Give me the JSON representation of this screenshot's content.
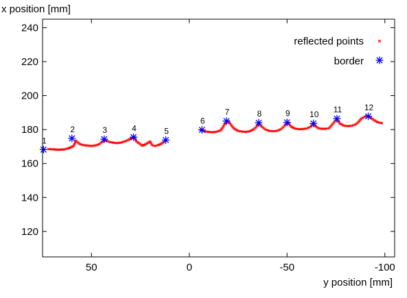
{
  "chart_data": {
    "type": "scatter",
    "xlabel": "y position [mm]",
    "ylabel": "x position [mm]",
    "xlim": [
      75,
      -105
    ],
    "ylim": [
      105,
      245
    ],
    "x_ticks": [
      50,
      0,
      -50,
      -100
    ],
    "x_tick_labels": [
      "50",
      "0",
      "-50",
      "-100"
    ],
    "y_ticks": [
      120,
      140,
      160,
      180,
      200,
      220,
      240
    ],
    "y_tick_labels": [
      "120",
      "140",
      "160",
      "180",
      "200",
      "220",
      "240"
    ],
    "grid": false,
    "legend_position": "top-right",
    "series": [
      {
        "name": "reflected points",
        "marker": "x",
        "color": "#ff0000",
        "segments": [
          [
            [
              72,
              168.5
            ],
            [
              70,
              168.4
            ],
            [
              67,
              168.1
            ],
            [
              64,
              168.3
            ],
            [
              62,
              168.9
            ],
            [
              60.5,
              169.5
            ],
            [
              59,
              170.5
            ],
            [
              58,
              173.5
            ],
            [
              56,
              171.5
            ],
            [
              54,
              170.8
            ],
            [
              52,
              170.6
            ],
            [
              50,
              170.3
            ],
            [
              48,
              170.6
            ],
            [
              46,
              171.4
            ],
            [
              44.5,
              172.8
            ],
            [
              43,
              173.8
            ],
            [
              41,
              172.8
            ],
            [
              39,
              172.3
            ],
            [
              37,
              172.0
            ],
            [
              35,
              172.3
            ],
            [
              33,
              173.0
            ],
            [
              31,
              174.0
            ],
            [
              29.5,
              174.8
            ],
            [
              28,
              175.4
            ],
            [
              27,
              173.0
            ],
            [
              25.5,
              171.8
            ],
            [
              24,
              170.5
            ],
            [
              22.5,
              171.2
            ],
            [
              21,
              172.2
            ],
            [
              20,
              173.0
            ],
            [
              19,
              170.8
            ],
            [
              17.5,
              170.3
            ],
            [
              16,
              170.8
            ],
            [
              14.5,
              171.5
            ],
            [
              13,
              172.7
            ],
            [
              12,
              173.6
            ]
          ],
          [
            [
              -6,
              179.8
            ],
            [
              -8,
              178.9
            ],
            [
              -10,
              178.6
            ],
            [
              -12,
              178.4
            ],
            [
              -14,
              178.7
            ],
            [
              -16,
              179.5
            ],
            [
              -17,
              181.0
            ],
            [
              -18,
              183.0
            ],
            [
              -20,
              185.0
            ],
            [
              -21.5,
              182.5
            ],
            [
              -23,
              180.5
            ],
            [
              -25,
              179.2
            ],
            [
              -27,
              178.8
            ],
            [
              -29,
              178.6
            ],
            [
              -31,
              179.0
            ],
            [
              -33,
              180.2
            ],
            [
              -34.5,
              181.8
            ],
            [
              -35.5,
              183.8
            ],
            [
              -37,
              181.8
            ],
            [
              -39,
              180.0
            ],
            [
              -41,
              179.2
            ],
            [
              -43,
              179.0
            ],
            [
              -45,
              179.3
            ],
            [
              -47,
              180.3
            ],
            [
              -49,
              182.5
            ],
            [
              -50.5,
              184.0
            ],
            [
              -52,
              181.8
            ],
            [
              -54,
              180.6
            ],
            [
              -56,
              180.2
            ],
            [
              -58,
              180.3
            ],
            [
              -60,
              180.6
            ],
            [
              -62,
              181.6
            ],
            [
              -63.5,
              183.6
            ],
            [
              -64.5,
              182.0
            ],
            [
              -66,
              180.8
            ],
            [
              -68,
              180.4
            ],
            [
              -70,
              180.5
            ],
            [
              -71.5,
              180.8
            ],
            [
              -74,
              184.2
            ],
            [
              -75.5,
              186.0
            ],
            [
              -77,
              183.6
            ],
            [
              -79,
              182.3
            ],
            [
              -81,
              182.0
            ],
            [
              -83,
              182.2
            ],
            [
              -85,
              183.0
            ],
            [
              -86.5,
              184.4
            ],
            [
              -88,
              186.5
            ],
            [
              -90.5,
              188.0
            ],
            [
              -92.5,
              187.2
            ],
            [
              -94.5,
              185.5
            ],
            [
              -96.5,
              184.2
            ],
            [
              -98.5,
              183.8
            ]
          ]
        ]
      },
      {
        "name": "border",
        "marker": "asterisk",
        "color": "#0000ff",
        "points": [
          {
            "label": "1",
            "x": 74.5,
            "y": 168.2
          },
          {
            "label": "2",
            "x": 60.0,
            "y": 174.8
          },
          {
            "label": "3",
            "x": 43.5,
            "y": 174.3
          },
          {
            "label": "4",
            "x": 28.5,
            "y": 175.5
          },
          {
            "label": "5",
            "x": 12.0,
            "y": 173.8
          },
          {
            "label": "6",
            "x": -6.5,
            "y": 179.8
          },
          {
            "label": "7",
            "x": -19.0,
            "y": 185.0
          },
          {
            "label": "8",
            "x": -35.5,
            "y": 184.0
          },
          {
            "label": "9",
            "x": -50.0,
            "y": 184.2
          },
          {
            "label": "10",
            "x": -63.5,
            "y": 183.6
          },
          {
            "label": "11",
            "x": -75.5,
            "y": 186.4
          },
          {
            "label": "12",
            "x": -91.5,
            "y": 187.8
          }
        ]
      }
    ]
  }
}
